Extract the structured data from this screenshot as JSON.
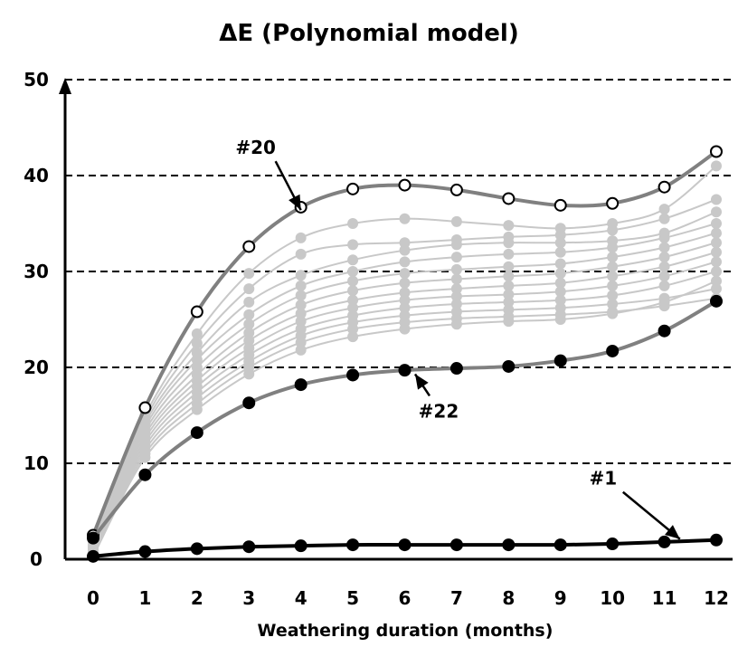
{
  "chart_data": {
    "type": "line",
    "title": "ΔE (Polynomial model)",
    "xlabel": "Weathering duration (months)",
    "ylabel": "",
    "x": [
      0,
      1,
      2,
      3,
      4,
      5,
      6,
      7,
      8,
      9,
      10,
      11,
      12
    ],
    "xlim": [
      0,
      12
    ],
    "ylim": [
      0,
      50
    ],
    "yticks": [
      0,
      10,
      20,
      30,
      40,
      50
    ],
    "grid": true,
    "highlight_series": [
      {
        "name": "#20",
        "color": "#808080",
        "marker": "open",
        "values": [
          2.5,
          15.8,
          25.8,
          32.6,
          36.7,
          38.6,
          39.0,
          38.5,
          37.6,
          36.9,
          37.1,
          38.8,
          42.5
        ]
      },
      {
        "name": "#22",
        "color": "#808080",
        "marker": "filled",
        "values": [
          2.2,
          8.8,
          13.2,
          16.3,
          18.2,
          19.2,
          19.7,
          19.9,
          20.1,
          20.7,
          21.7,
          23.8,
          26.9
        ]
      },
      {
        "name": "#1",
        "color": "#000000",
        "marker": "filled",
        "values": [
          0.3,
          0.8,
          1.1,
          1.3,
          1.4,
          1.5,
          1.5,
          1.5,
          1.5,
          1.5,
          1.6,
          1.8,
          2.0
        ]
      }
    ],
    "background_series": [
      {
        "values": [
          2.0,
          15.0,
          23.5,
          29.8,
          33.5,
          35.0,
          35.5,
          35.2,
          34.8,
          34.5,
          35.0,
          36.5,
          41.0
        ]
      },
      {
        "values": [
          1.8,
          14.6,
          22.5,
          28.2,
          31.8,
          32.8,
          33.0,
          33.3,
          33.6,
          33.8,
          34.3,
          35.5,
          37.5
        ]
      },
      {
        "values": [
          1.5,
          14.2,
          21.5,
          26.8,
          29.6,
          31.2,
          32.2,
          32.8,
          33.0,
          33.0,
          33.2,
          34.0,
          36.2
        ]
      },
      {
        "values": [
          1.3,
          13.8,
          20.8,
          25.5,
          28.5,
          30.0,
          31.0,
          31.5,
          31.8,
          32.0,
          32.5,
          33.5,
          35.0
        ]
      },
      {
        "values": [
          1.2,
          13.4,
          20.0,
          24.5,
          27.5,
          29.0,
          29.8,
          30.2,
          30.5,
          30.8,
          31.5,
          32.5,
          34.0
        ]
      },
      {
        "values": [
          1.0,
          13.0,
          19.2,
          23.6,
          26.5,
          28.0,
          28.8,
          29.2,
          29.5,
          29.8,
          30.5,
          31.5,
          33.0
        ]
      },
      {
        "values": [
          0.8,
          12.6,
          18.6,
          22.8,
          25.6,
          27.0,
          27.8,
          28.2,
          28.5,
          28.8,
          29.5,
          30.5,
          32.0
        ]
      },
      {
        "values": [
          0.7,
          12.2,
          18.0,
          22.0,
          24.8,
          26.2,
          27.0,
          27.4,
          27.6,
          27.9,
          28.5,
          29.5,
          31.0
        ]
      },
      {
        "values": [
          0.6,
          11.8,
          17.4,
          21.3,
          24.0,
          25.4,
          26.2,
          26.6,
          26.8,
          27.0,
          27.5,
          28.5,
          30.0
        ]
      },
      {
        "values": [
          0.5,
          11.4,
          16.8,
          20.6,
          23.3,
          24.7,
          25.4,
          25.8,
          26.0,
          26.2,
          26.6,
          27.2,
          28.2
        ]
      },
      {
        "values": [
          0.4,
          11.0,
          16.2,
          20.0,
          22.6,
          24.0,
          24.7,
          25.1,
          25.3,
          25.5,
          25.8,
          26.4,
          27.2
        ]
      },
      {
        "values": [
          0.3,
          10.6,
          15.6,
          19.3,
          21.8,
          23.2,
          24.0,
          24.5,
          24.8,
          25.0,
          25.6,
          26.8,
          29.0
        ]
      }
    ],
    "background_color": "#c8c8c8",
    "annotations": [
      {
        "label": "#20",
        "target_x": 4,
        "target_y": 36.4
      },
      {
        "label": "#22",
        "target_x": 6.2,
        "target_y": 19.3
      },
      {
        "label": "#1",
        "target_x": 11.3,
        "target_y": 2.1
      }
    ]
  }
}
